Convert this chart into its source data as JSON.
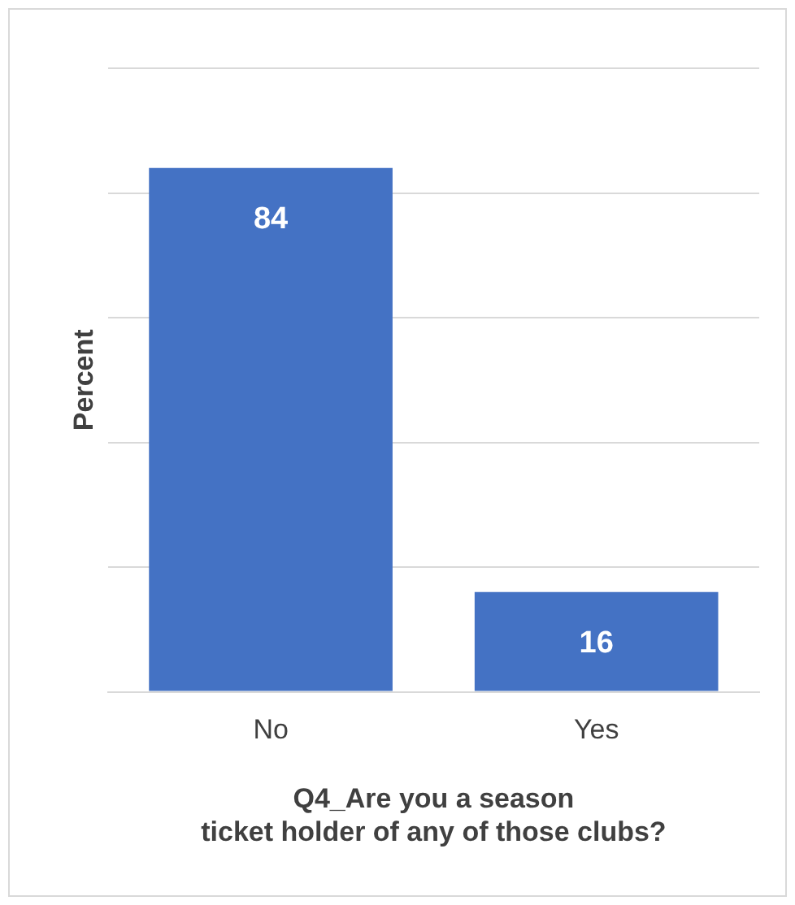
{
  "chart_data": {
    "type": "bar",
    "xlabel": "Q4_Are you a season ticket holder of any of those clubs?",
    "ylabel": "Percent",
    "categories": [
      "No",
      "Yes"
    ],
    "values": [
      84,
      16
    ],
    "color": "#4472c4",
    "ylim": [
      0,
      100
    ],
    "yticks": [
      {
        "value": 0,
        "label": null
      },
      {
        "value": 20,
        "label": null
      },
      {
        "value": 40,
        "label": null
      },
      {
        "value": 60,
        "label": null
      },
      {
        "value": 80,
        "label": null
      },
      {
        "value": 100,
        "label": null
      }
    ],
    "grid": "y",
    "tick_labels": "x",
    "data_labels": true,
    "legend": false
  }
}
